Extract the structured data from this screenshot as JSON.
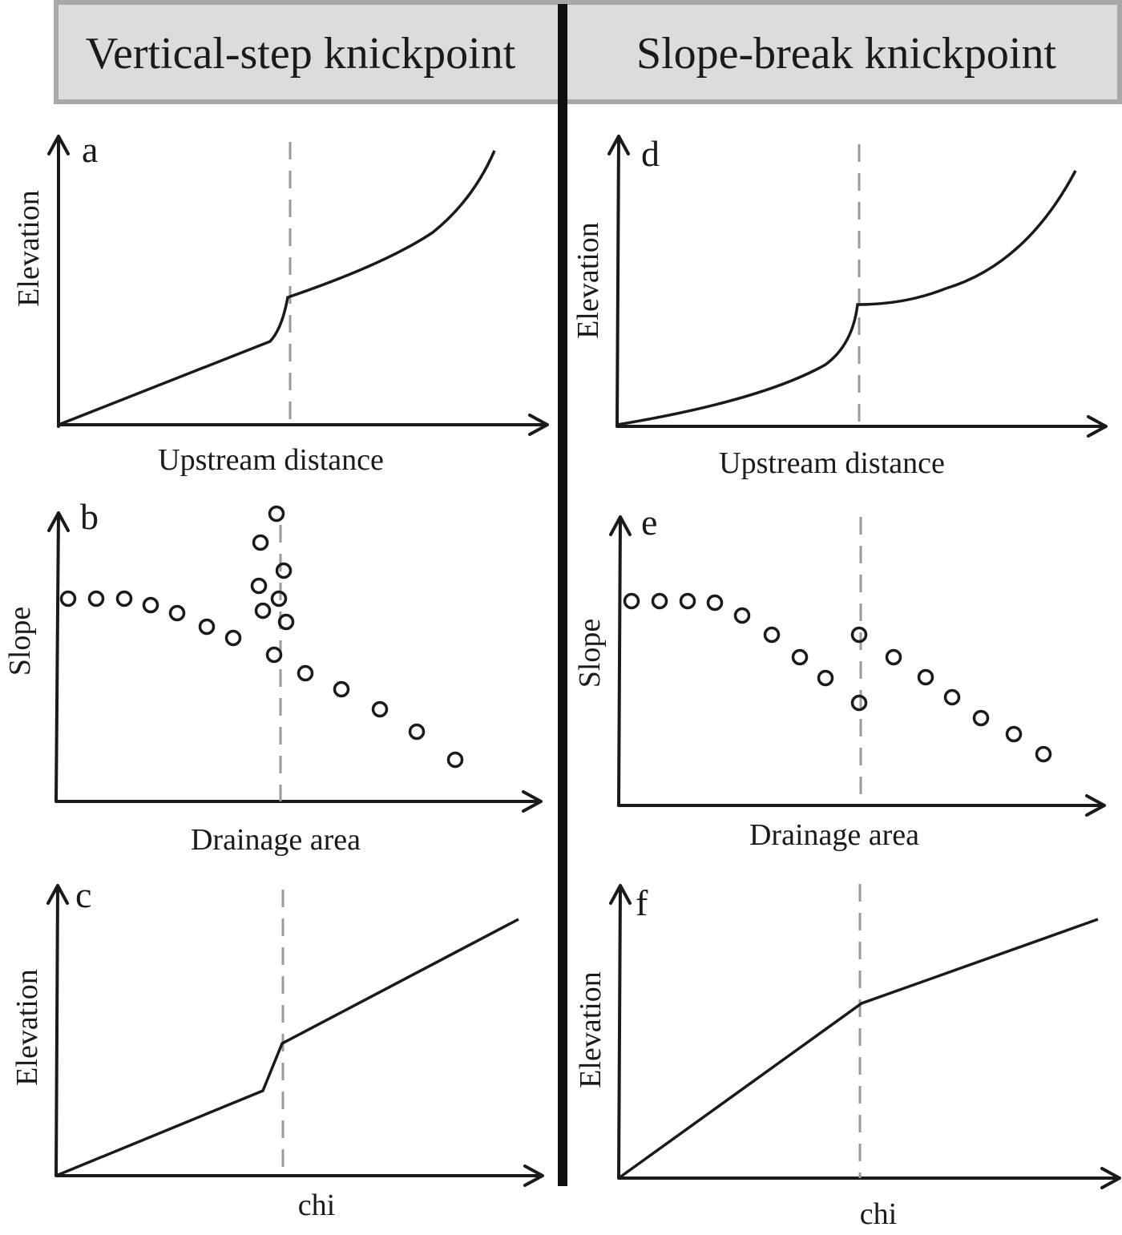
{
  "headers": {
    "left": "Vertical-step knickpoint",
    "right": "Slope-break knickpoint"
  },
  "panels": {
    "a": {
      "letter": "a",
      "ylabel": "Elevation",
      "xlabel": "Upstream distance"
    },
    "b": {
      "letter": "b",
      "ylabel": "Slope",
      "xlabel": "Drainage area"
    },
    "c": {
      "letter": "c",
      "ylabel": "Elevation",
      "xlabel": "chi"
    },
    "d": {
      "letter": "d",
      "ylabel": "Elevation",
      "xlabel": "Upstream distance"
    },
    "e": {
      "letter": "e",
      "ylabel": "Slope",
      "xlabel": "Drainage area"
    },
    "f": {
      "letter": "f",
      "ylabel": "Elevation",
      "xlabel": "chi"
    }
  },
  "colors": {
    "header_bg": "#dcdcde",
    "header_border": "#a8a8a8",
    "dashed": "#9a9a9a",
    "ink": "#1a1a1a"
  }
}
